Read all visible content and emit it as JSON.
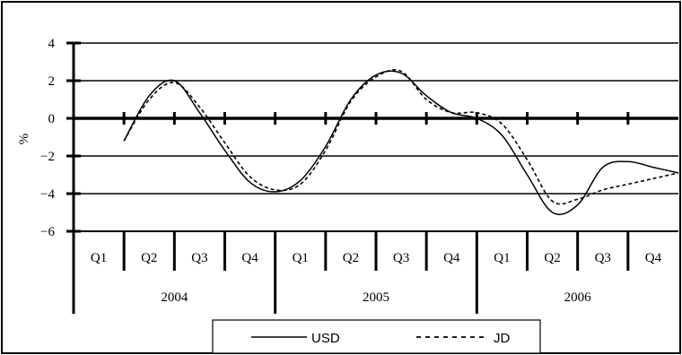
{
  "chart_data": {
    "type": "line",
    "ylabel": "%",
    "ylim": [
      -6,
      4
    ],
    "yticks": [
      -6,
      -4,
      -2,
      0,
      2,
      4
    ],
    "ytick_labels": [
      "−6",
      "−4",
      "−2",
      "0",
      "2",
      "4"
    ],
    "grid": true,
    "legend_position": "bottom",
    "categories": [
      "Q1",
      "Q2",
      "Q3",
      "Q4",
      "Q1",
      "Q2",
      "Q3",
      "Q4",
      "Q1",
      "Q2",
      "Q3",
      "Q4"
    ],
    "years": [
      {
        "label": "2004",
        "quarters": 4
      },
      {
        "label": "2005",
        "quarters": 4
      },
      {
        "label": "2006",
        "quarters": 4
      }
    ],
    "series": [
      {
        "name": "USD",
        "style": "solid",
        "x": [
          0.0,
          0.5,
          1.0,
          1.5,
          2.0,
          2.5,
          3.0,
          3.5,
          4.0,
          4.5,
          5.0,
          5.5,
          6.0,
          6.5,
          7.0,
          7.5,
          8.0,
          8.5,
          9.0,
          9.5,
          10.0,
          10.5,
          11.0
        ],
        "values": [
          -1.2,
          1.2,
          2.0,
          0.3,
          -1.7,
          -3.4,
          -3.9,
          -3.3,
          -1.5,
          1.0,
          2.3,
          2.4,
          1.2,
          0.3,
          0.0,
          -0.9,
          -3.0,
          -5.0,
          -4.6,
          -2.6,
          -2.3,
          -2.6,
          -2.9
        ]
      },
      {
        "name": "JD",
        "style": "dashed",
        "x": [
          0.0,
          0.5,
          1.0,
          1.5,
          2.0,
          2.5,
          3.0,
          3.5,
          4.0,
          4.5,
          5.0,
          5.5,
          6.0,
          6.5,
          7.0,
          7.5,
          8.0,
          8.5,
          9.0,
          9.5,
          10.0,
          10.5,
          11.0
        ],
        "values": [
          -1.2,
          1.0,
          1.9,
          0.6,
          -1.3,
          -3.1,
          -3.8,
          -3.5,
          -1.7,
          0.9,
          2.2,
          2.5,
          1.0,
          0.3,
          0.3,
          -0.3,
          -2.2,
          -4.4,
          -4.3,
          -3.8,
          -3.5,
          -3.2,
          -2.9
        ]
      }
    ]
  }
}
